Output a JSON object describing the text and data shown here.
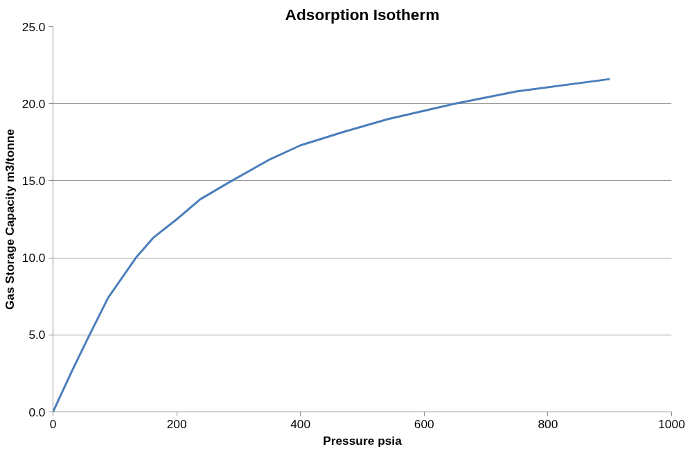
{
  "chart_data": {
    "type": "line",
    "title": "Adsorption Isotherm",
    "xlabel": "Pressure psia",
    "ylabel": "Gas Storage Capacity m3/tonne",
    "x": [
      0,
      30,
      59,
      89,
      134,
      162,
      200,
      238,
      289,
      351,
      400,
      472,
      541,
      649,
      749,
      900
    ],
    "series": [
      {
        "color": "#4a7ebb",
        "values": [
          0,
          2.6,
          5,
          7.4,
          10,
          11.3,
          12.5,
          13.8,
          15,
          16.4,
          17.3,
          18.2,
          19.0,
          20.0,
          20.8,
          21.6
        ]
      }
    ],
    "xlim": [
      0,
      1000
    ],
    "xticks": [
      0,
      200,
      400,
      600,
      800,
      1000
    ],
    "ylim": [
      0,
      25
    ],
    "yticks": [
      {
        "value": 0,
        "label": "0.0"
      },
      {
        "value": 5,
        "label": "5.0"
      },
      {
        "value": 10,
        "label": "10.0"
      },
      {
        "value": 15,
        "label": "15.0"
      },
      {
        "value": 20,
        "label": "20.0"
      },
      {
        "value": 25,
        "label": "25.0"
      }
    ],
    "grid": "y",
    "marker": "none",
    "line_style": "solid"
  }
}
